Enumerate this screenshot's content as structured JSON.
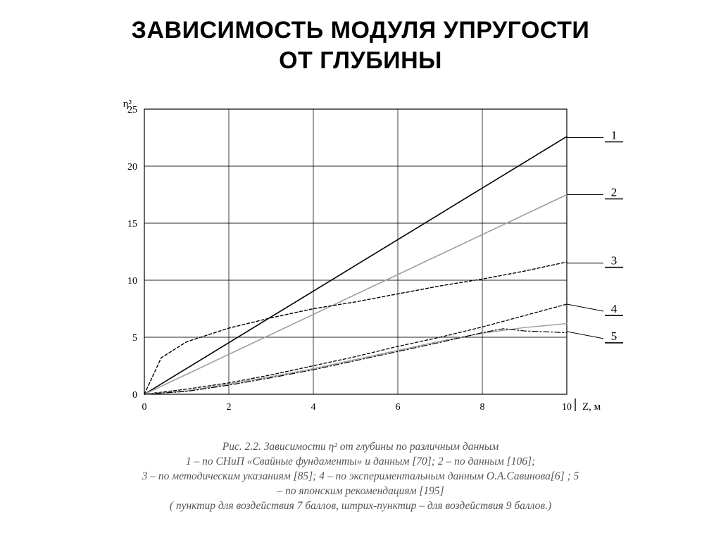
{
  "title_line1": "ЗАВИСИМОСТЬ МОДУЛЯ УПРУГОСТИ",
  "title_line2": "ОТ ГЛУБИНЫ",
  "chart": {
    "type": "line",
    "background_color": "#ffffff",
    "axis_color": "#000000",
    "grid_color": "#000000",
    "axis_width": 1.2,
    "grid_width": 0.9,
    "y_axis_label": "η²",
    "x_axis_label": "Z, м",
    "xlim": [
      0,
      10
    ],
    "ylim": [
      0,
      25
    ],
    "xtick_step": 2,
    "ytick_step": 5,
    "xtick_labels": [
      "0",
      "2",
      "4",
      "6",
      "8",
      "10"
    ],
    "ytick_labels": [
      "0",
      "5",
      "10",
      "15",
      "20",
      "25"
    ],
    "tick_fontsize": 14,
    "axis_label_fontsize": 15,
    "series": [
      {
        "id": "1",
        "label": "1",
        "color": "#000000",
        "width": 1.6,
        "dash": "none",
        "x": [
          0,
          10
        ],
        "y": [
          0,
          22.6
        ]
      },
      {
        "id": "2",
        "label": "2",
        "color": "#9e9e9e",
        "width": 1.6,
        "dash": "none",
        "x": [
          0,
          10
        ],
        "y": [
          0,
          17.5
        ]
      },
      {
        "id": "3",
        "label": "3",
        "color": "#000000",
        "width": 1.4,
        "dash": "4 3",
        "x": [
          0,
          0.4,
          1,
          2,
          3,
          4,
          5,
          6,
          7,
          8,
          9,
          10
        ],
        "y": [
          0,
          3.2,
          4.6,
          5.8,
          6.7,
          7.5,
          8.1,
          8.8,
          9.5,
          10.1,
          10.8,
          11.6
        ]
      },
      {
        "id": "4",
        "label": "4",
        "color": "#000000",
        "width": 1.3,
        "dash": "4 3",
        "x": [
          0,
          1,
          2,
          3,
          4,
          5,
          6,
          7,
          8,
          9,
          10
        ],
        "y": [
          0,
          0.45,
          1.0,
          1.7,
          2.5,
          3.3,
          4.2,
          5.0,
          5.9,
          6.9,
          7.9
        ]
      },
      {
        "id": "5a",
        "label": "5",
        "color": "#9e9e9e",
        "width": 1.4,
        "dash": "none",
        "x": [
          0,
          1,
          2,
          3,
          4,
          5,
          6,
          7,
          8,
          9,
          10
        ],
        "y": [
          0,
          0.3,
          0.9,
          1.55,
          2.25,
          3.05,
          3.85,
          4.65,
          5.35,
          5.85,
          6.2
        ]
      },
      {
        "id": "5b",
        "label": "",
        "color": "#000000",
        "width": 1.2,
        "dash": "8 3 2 3",
        "x": [
          0,
          1,
          2,
          3,
          4,
          5,
          6,
          7,
          8,
          8.5,
          9,
          10
        ],
        "y": [
          0,
          0.25,
          0.8,
          1.45,
          2.15,
          2.95,
          3.75,
          4.55,
          5.4,
          5.75,
          5.55,
          5.4
        ]
      }
    ],
    "annotation_labels": [
      {
        "text": "1",
        "leader_from_xy": [
          10,
          22.5
        ],
        "label_offset": [
          70,
          0
        ]
      },
      {
        "text": "2",
        "leader_from_xy": [
          10,
          17.5
        ],
        "label_offset": [
          70,
          0
        ]
      },
      {
        "text": "3",
        "leader_from_xy": [
          10,
          11.5
        ],
        "label_offset": [
          70,
          0
        ]
      },
      {
        "text": "4",
        "leader_from_xy": [
          10,
          7.9
        ],
        "label_offset": [
          70,
          10
        ]
      },
      {
        "text": "5",
        "leader_from_xy": [
          10,
          5.5
        ],
        "label_offset": [
          70,
          10
        ]
      }
    ],
    "annotation_fontsize": 17,
    "annotation_color": "#000000",
    "x_axis_label_bar": true
  },
  "caption": {
    "line1": "Рис. 2.2. Зависимости η² от глубины по различным данным",
    "line2": "1 – по СНиП «Свайные фундаменты» и данным [70];  2 – по данным [106];",
    "line3": "3 – по методическим указаниям [85];  4 – по экспериментальным данным О.А.Савинова[6] ;  5",
    "line4": "– по японским рекомендациям [195]",
    "line5": "( пунктир для воздействия 7 баллов, штрих-пунктир – для воздействия 9 баллов.)",
    "color": "#6a6a6a",
    "fontsize": 15.5
  }
}
